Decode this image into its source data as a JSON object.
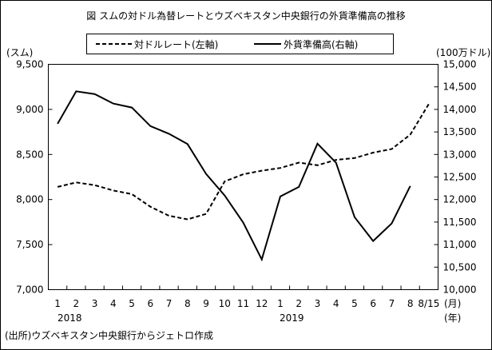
{
  "chart_data": {
    "type": "line",
    "title": "図 スムの対ドル為替レートとウズベキスタン中央銀行の外貨準備高の推移",
    "categories": [
      "1",
      "2",
      "3",
      "4",
      "5",
      "6",
      "7",
      "8",
      "9",
      "10",
      "11",
      "12",
      "1",
      "2",
      "3",
      "4",
      "5",
      "6",
      "7",
      "8",
      "8/15"
    ],
    "year_labels": [
      "2018",
      "2019"
    ],
    "x_unit_month": "(月)",
    "x_unit_year": "(年)",
    "left_axis": {
      "label": "(スム)",
      "ylim": [
        7000,
        9500
      ],
      "ticks": [
        "7,000",
        "7,500",
        "8,000",
        "8,500",
        "9,000",
        "9,500"
      ]
    },
    "right_axis": {
      "label": "(100万ドル)",
      "ylim": [
        10000,
        15000
      ],
      "ticks": [
        "10,000",
        "10,500",
        "11,000",
        "11,500",
        "12,000",
        "12,500",
        "13,000",
        "13,500",
        "14,000",
        "14,500",
        "15,000"
      ]
    },
    "legend_position": "top",
    "series": [
      {
        "name": "対ドルレート(左軸)",
        "axis": "left",
        "style": "dashed",
        "values": [
          8140,
          8190,
          8160,
          8100,
          8060,
          7920,
          7820,
          7780,
          7840,
          8200,
          8280,
          8320,
          8350,
          8410,
          8380,
          8440,
          8460,
          8520,
          8560,
          8720,
          9060
        ]
      },
      {
        "name": "外貨準備高(右軸)",
        "axis": "right",
        "style": "solid",
        "values": [
          13680,
          14400,
          14340,
          14130,
          14040,
          13630,
          13460,
          13230,
          12570,
          12090,
          11490,
          10670,
          12070,
          12280,
          13240,
          12820,
          11610,
          11080,
          11470,
          12300,
          null
        ]
      }
    ],
    "source": "(出所)ウズベキスタン中央銀行からジェトロ作成",
    "grid": false
  }
}
